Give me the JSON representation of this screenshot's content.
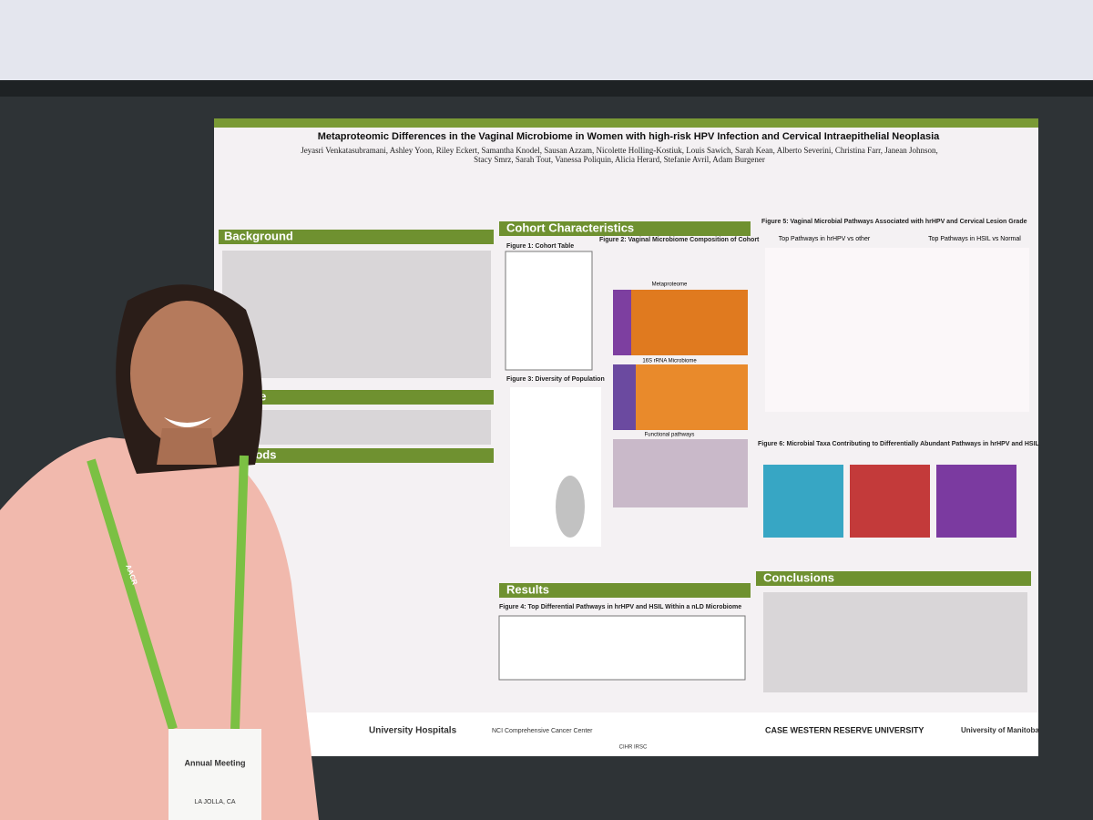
{
  "poster": {
    "title": "Metaproteomic Differences in the Vaginal Microbiome in Women with high-risk HPV Infection and Cervical Intraepithelial Neoplasia",
    "authors": "Jeyasri Venkatasubramani, Ashley Yoon, Riley Eckert, Samantha Knodel, Sausan Azzam, Nicolette Holling-Kostiuk, Louis Sawich, Sarah Kean, Alberto Severini, Christina Farr, Janean Johnson, Stacy Smrz, Sarah Tout, Vanessa Poliquin, Alicia Herard, Stefanie Avril, Adam Burgener",
    "sections": [
      "Background",
      "tive",
      "Methods",
      "Cohort Characteristics",
      "Results",
      "Conclusions"
    ],
    "figures": [
      "Figure 1: Cohort Table",
      "Figure 2: Vaginal Microbiome Composition of Cohort",
      "Figure 3: Diversity of Population",
      "Figure 4: Top Differential Pathways in hrHPV and HSIL Within a nLD Microbiome",
      "Figure 5: Vaginal Microbial Pathways Associated with hrHPV and Cervical Lesion Grade",
      "Figure 6: Microbial Taxa Contributing to Differentially Abundant Pathways in hrHPV and HSIL"
    ],
    "subheads": [
      "Top Pathways in hrHPV vs other",
      "Top Pathways in HSIL vs Normal",
      "Metaproteome",
      "16S rRNA Microbiome",
      "Functional pathways"
    ],
    "logos": [
      "University Hospitals",
      "NCI Comprehensive Cancer Center",
      "CIHR IRSC",
      "CASE WESTERN RESERVE UNIVERSITY",
      "University of Manitoba"
    ]
  },
  "badge": {
    "lanyard": "AACR",
    "event": "Annual Meeting",
    "location": "LA JOLLA, CA"
  }
}
